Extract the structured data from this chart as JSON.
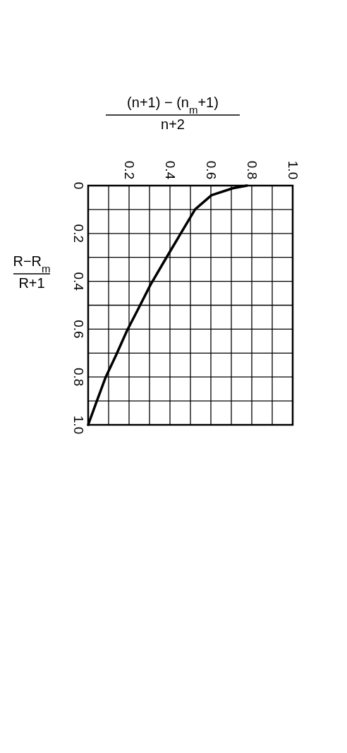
{
  "chart_data": {
    "type": "line",
    "xlabel": "(n+1) − (n$_{m}$+1)\nn+2",
    "ylabel": "R−R$_{m}$\nR+1",
    "xlim": [
      0,
      1
    ],
    "ylim": [
      1,
      0
    ],
    "xticks": [
      {
        "value": 0,
        "label": null
      },
      {
        "value": 0.1,
        "label": null
      },
      0.2,
      {
        "value": 0.3,
        "label": null
      },
      0.4,
      {
        "value": 0.5,
        "label": null
      },
      0.6,
      {
        "value": 0.7,
        "label": null
      },
      0.8,
      {
        "value": 0.9,
        "label": null
      },
      {
        "value": 1,
        "label": "1.0"
      }
    ],
    "yticks": [
      0,
      {
        "value": 0.1,
        "label": null
      },
      0.2,
      {
        "value": 0.3,
        "label": null
      },
      0.4,
      {
        "value": 0.5,
        "label": null
      },
      0.6,
      {
        "value": 0.7,
        "label": null
      },
      0.8,
      {
        "value": 0.9,
        "label": null
      },
      {
        "value": 1,
        "label": "1.0"
      }
    ],
    "grid": true,
    "marker": "none",
    "line_style": "solid",
    "series": [
      {
        "color": "#000000",
        "x": [
          0.776,
          0.707,
          0.603,
          0.523,
          0.454,
          0.379,
          0.305,
          0.247,
          0.19,
          0.138,
          0.086,
          0.04,
          0
        ],
        "values": [
          0,
          0.011,
          0.04,
          0.099,
          0.198,
          0.306,
          0.414,
          0.512,
          0.606,
          0.706,
          0.8,
          0.906,
          1
        ]
      }
    ]
  }
}
